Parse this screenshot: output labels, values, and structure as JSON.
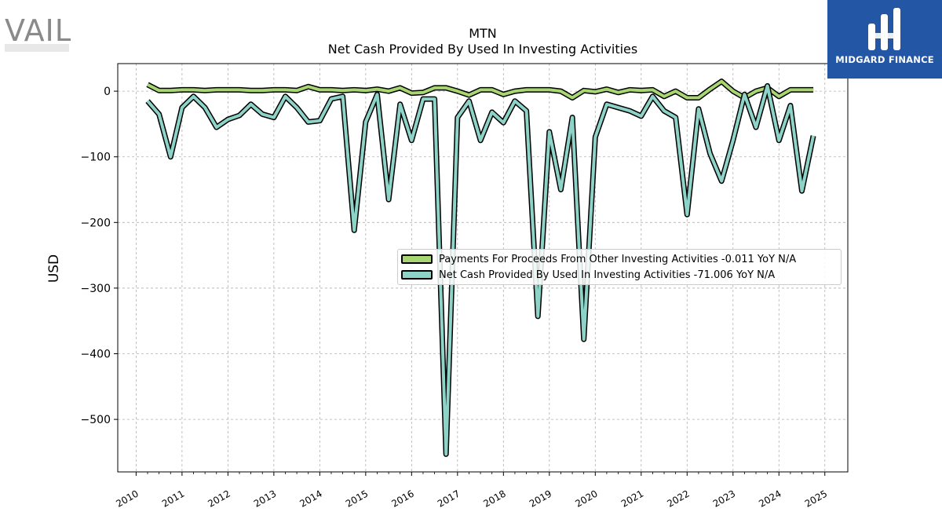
{
  "branding": {
    "left_logo_text": "VAIL",
    "right_logo_text": "MIDGARD FINANCE",
    "right_logo_color": "#2456a6"
  },
  "chart_data": {
    "type": "line",
    "title": "MTN",
    "subtitle": "Net Cash Provided By Used In Investing Activities",
    "xlabel": "",
    "ylabel": "USD",
    "xlim": [
      2009.6,
      2025.5
    ],
    "ylim": [
      -580,
      42
    ],
    "x_ticks": [
      "2010",
      "2011",
      "2012",
      "2013",
      "2014",
      "2015",
      "2016",
      "2017",
      "2018",
      "2019",
      "2020",
      "2021",
      "2022",
      "2023",
      "2024",
      "2025"
    ],
    "y_ticks": [
      0,
      -100,
      -200,
      -300,
      -400,
      -500
    ],
    "y_tick_labels": [
      "0",
      "−100",
      "−200",
      "−300",
      "−400",
      "−500"
    ],
    "grid": true,
    "legend_position": "center-right",
    "x": [
      2010.25,
      2010.5,
      2010.75,
      2011.0,
      2011.25,
      2011.5,
      2011.75,
      2012.0,
      2012.25,
      2012.5,
      2012.75,
      2013.0,
      2013.25,
      2013.5,
      2013.75,
      2014.0,
      2014.25,
      2014.5,
      2014.75,
      2015.0,
      2015.25,
      2015.5,
      2015.75,
      2016.0,
      2016.25,
      2016.5,
      2016.75,
      2017.0,
      2017.25,
      2017.5,
      2017.75,
      2018.0,
      2018.25,
      2018.5,
      2018.75,
      2019.0,
      2019.25,
      2019.5,
      2019.75,
      2020.0,
      2020.25,
      2020.5,
      2020.75,
      2021.0,
      2021.25,
      2021.5,
      2021.75,
      2022.0,
      2022.25,
      2022.5,
      2022.75,
      2023.0,
      2023.25,
      2023.5,
      2023.75,
      2024.0,
      2024.25,
      2024.5,
      2024.75
    ],
    "series": [
      {
        "name": "Payments For Proceeds From Other Investing Activities  -0.011 YoY N/A",
        "color": "#a8d672",
        "values": [
          10,
          1,
          1,
          2,
          2,
          1,
          2,
          2,
          2,
          1,
          1,
          2,
          2,
          1,
          7,
          2,
          2,
          1,
          2,
          1,
          3,
          0,
          5,
          -3,
          -2,
          5,
          5,
          0,
          -6,
          2,
          2,
          -5,
          0,
          2,
          2,
          2,
          0,
          -10,
          1,
          -1,
          3,
          -2,
          2,
          1,
          2,
          -8,
          0,
          -10,
          -10,
          3,
          15,
          0,
          -10,
          0,
          5,
          -8,
          2,
          2,
          2
        ]
      },
      {
        "name": "Net Cash Provided By Used In Investing Activities  -71.006 YoY N/A",
        "color": "#8dd3c7",
        "values": [
          -15,
          -35,
          -100,
          -25,
          -8,
          -25,
          -55,
          -43,
          -37,
          -20,
          -35,
          -40,
          -8,
          -25,
          -47,
          -45,
          -12,
          -8,
          -212,
          -47,
          -5,
          -165,
          -20,
          -75,
          -12,
          -12,
          -553,
          -40,
          -15,
          -75,
          -32,
          -48,
          -15,
          -30,
          -343,
          -62,
          -150,
          -40,
          -378,
          -70,
          -20,
          -25,
          -30,
          -38,
          -8,
          -30,
          -40,
          -188,
          -27,
          -95,
          -137,
          -75,
          -5,
          -55,
          8,
          -75,
          -22,
          -152,
          -68
        ]
      }
    ]
  }
}
